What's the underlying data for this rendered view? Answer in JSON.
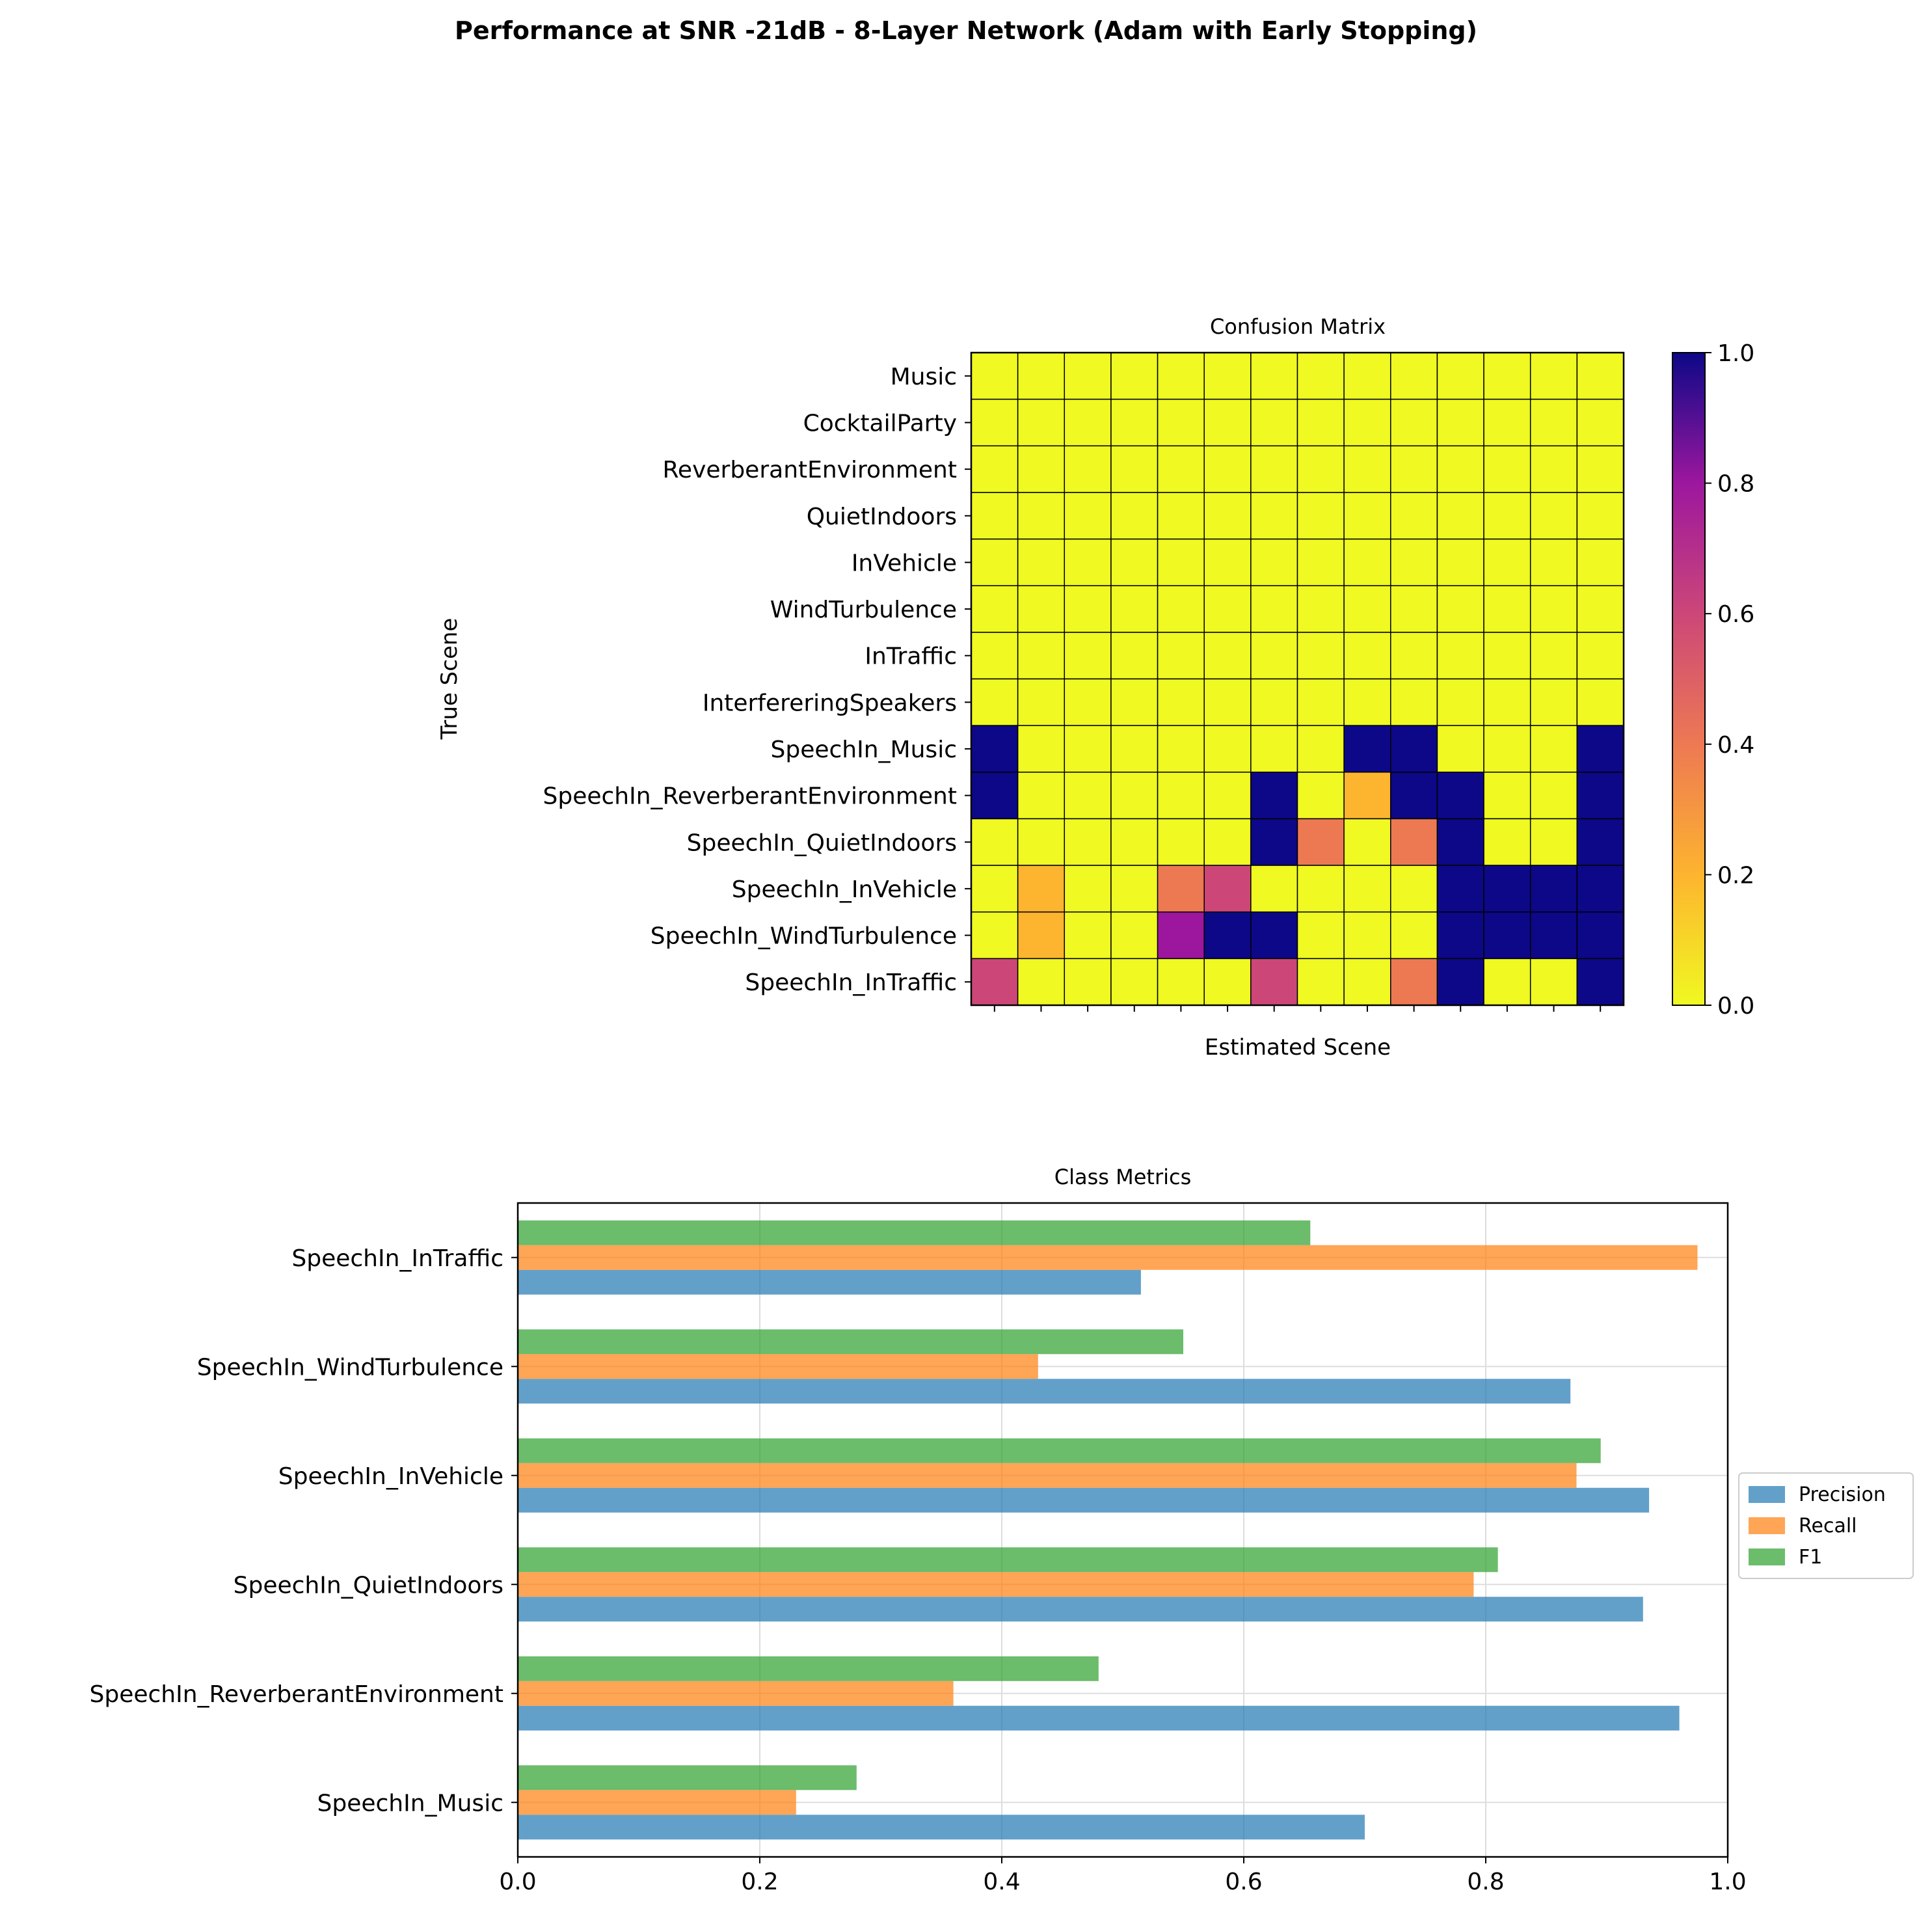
{
  "figure": {
    "title": "Performance at SNR -21dB - 8-Layer Network (Adam with Early Stopping)"
  },
  "chart_data": [
    {
      "type": "heatmap",
      "title": "Confusion Matrix",
      "xlabel": "Estimated Scene",
      "ylabel": "True Scene",
      "rows": [
        "Music",
        "CocktailParty",
        "ReverberantEnvironment",
        "QuietIndoors",
        "InVehicle",
        "WindTurbulence",
        "InTraffic",
        "InterfereringSpeakers",
        "SpeechIn_Music",
        "SpeechIn_ReverberantEnvironment",
        "SpeechIn_QuietIndoors",
        "SpeechIn_InVehicle",
        "SpeechIn_WindTurbulence",
        "SpeechIn_InTraffic"
      ],
      "x_tick_labels_visible": false,
      "values": [
        [
          0,
          0,
          0,
          0,
          0,
          0,
          0,
          0,
          0,
          0,
          0,
          0,
          0,
          0
        ],
        [
          0,
          0,
          0,
          0,
          0,
          0,
          0,
          0,
          0,
          0,
          0,
          0,
          0,
          0
        ],
        [
          0,
          0,
          0,
          0,
          0,
          0,
          0,
          0,
          0,
          0,
          0,
          0,
          0,
          0
        ],
        [
          0,
          0,
          0,
          0,
          0,
          0,
          0,
          0,
          0,
          0,
          0,
          0,
          0,
          0
        ],
        [
          0,
          0,
          0,
          0,
          0,
          0,
          0,
          0,
          0,
          0,
          0,
          0,
          0,
          0
        ],
        [
          0,
          0,
          0,
          0,
          0,
          0,
          0,
          0,
          0,
          0,
          0,
          0,
          0,
          0
        ],
        [
          0,
          0,
          0,
          0,
          0,
          0,
          0,
          0,
          0,
          0,
          0,
          0,
          0,
          0
        ],
        [
          0,
          0,
          0,
          0,
          0,
          0,
          0,
          0,
          0,
          0,
          0,
          0,
          0,
          0
        ],
        [
          1,
          0,
          0,
          0,
          0,
          0,
          0,
          0,
          1,
          1,
          0,
          0,
          0,
          1
        ],
        [
          1,
          0,
          0,
          0,
          0,
          0,
          1,
          0,
          0.2,
          1,
          1,
          0,
          0,
          1
        ],
        [
          0,
          0,
          0,
          0,
          0,
          0,
          1,
          0.4,
          0,
          0.4,
          1,
          0,
          0,
          1
        ],
        [
          0,
          0.2,
          0,
          0,
          0.4,
          0.6,
          0,
          0,
          0,
          0,
          1,
          1,
          1,
          1
        ],
        [
          0,
          0.2,
          0,
          0,
          0.8,
          1,
          1,
          0,
          0,
          0,
          1,
          1,
          1,
          1
        ],
        [
          0.6,
          0,
          0,
          0,
          0,
          0,
          0.6,
          0,
          0,
          0.4,
          1,
          0,
          0,
          1
        ]
      ],
      "colorbar": {
        "colormap": "plasma_r",
        "range": [
          0,
          1
        ],
        "ticks": [
          "0.0",
          "0.2",
          "0.4",
          "0.6",
          "0.8",
          "1.0"
        ]
      },
      "grid": true
    },
    {
      "type": "bar",
      "orientation": "horizontal",
      "title": "Class Metrics",
      "categories": [
        "SpeechIn_Music",
        "SpeechIn_ReverberantEnvironment",
        "SpeechIn_QuietIndoors",
        "SpeechIn_InVehicle",
        "SpeechIn_WindTurbulence",
        "SpeechIn_InTraffic"
      ],
      "series": [
        {
          "name": "Precision",
          "color": "#1f77b4",
          "values": [
            0.7,
            0.96,
            0.93,
            0.935,
            0.87,
            0.515
          ]
        },
        {
          "name": "Recall",
          "color": "#ff7f0e",
          "values": [
            0.23,
            0.36,
            0.79,
            0.875,
            0.43,
            0.975
          ]
        },
        {
          "name": "F1",
          "color": "#2ca02c",
          "values": [
            0.28,
            0.48,
            0.81,
            0.895,
            0.55,
            0.655
          ]
        }
      ],
      "xlim": [
        0,
        1
      ],
      "x_ticks": [
        "0.0",
        "0.2",
        "0.4",
        "0.6",
        "0.8",
        "1.0"
      ],
      "legend": {
        "placement": "right, outside",
        "entries": [
          "Precision",
          "Recall",
          "F1"
        ]
      },
      "grid": true
    }
  ]
}
